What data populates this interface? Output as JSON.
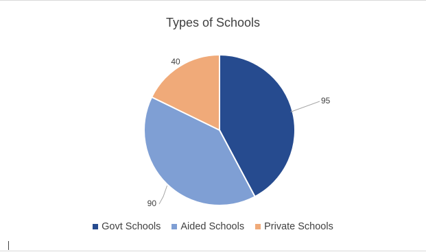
{
  "chart_data": {
    "type": "pie",
    "title": "Types of Schools",
    "categories": [
      "Govt Schools",
      "Aided Schools",
      "Private Schools"
    ],
    "values": [
      95,
      90,
      40
    ],
    "colors": [
      "#264b8f",
      "#7f9fd4",
      "#f0aa79"
    ],
    "data_labels": [
      "95",
      "90",
      "40"
    ],
    "legend_placement": "bottom"
  }
}
